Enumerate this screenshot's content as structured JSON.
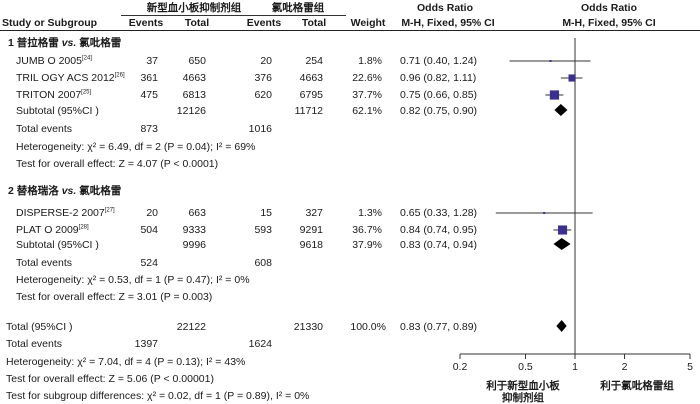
{
  "header": {
    "group_new": "新型血小板抑制剂组",
    "group_clop": "氯吡格雷组",
    "or_header_1": "Odds Ratio",
    "or_header_2": "Odds Ratio",
    "col_study": "Study or Subgroup",
    "col_events_1": "Events",
    "col_total_1": "Total",
    "col_events_2": "Events",
    "col_total_2": "Total",
    "col_weight": "Weight",
    "col_method_1": "M-H, Fixed, 95% CI",
    "col_method_2": "M-H, Fixed, 95% CI"
  },
  "subgroup1": {
    "title_pre": "1 普拉格雷",
    "title_vs": "vs.",
    "title_post": "氯吡格雷",
    "studies": [
      {
        "name": "JUMB O 2005",
        "ref": "[24]",
        "e1": "37",
        "t1": "650",
        "e2": "20",
        "t2": "254",
        "weight": "1.8%",
        "ci": "0.71 (0.40, 1.24)"
      },
      {
        "name": "TRIL OGY ACS 2012",
        "ref": "[26]",
        "e1": "361",
        "t1": "4663",
        "e2": "376",
        "t2": "4663",
        "weight": "22.6%",
        "ci": "0.96 (0.82, 1.11)"
      },
      {
        "name": "TRITON  2007",
        "ref": "[25]",
        "e1": "475",
        "t1": "6813",
        "e2": "620",
        "t2": "6795",
        "weight": "37.7%",
        "ci": "0.75 (0.66, 0.85)"
      }
    ],
    "subtotal_label": "Subtotal (95%CI )",
    "subtotal_t1": "12126",
    "subtotal_t2": "11712",
    "subtotal_weight": "62.1%",
    "subtotal_ci": "0.82 (0.75, 0.90)",
    "total_events_label": "Total events",
    "total_events_1": "873",
    "total_events_2": "1016",
    "heterogeneity": "Heterogeneity: χ² = 6.49, df = 2 (P = 0.04); I² = 69%",
    "overall_effect": "Test for overall effect: Z = 4.07 (P < 0.0001)"
  },
  "subgroup2": {
    "title_pre": "2 替格瑞洛",
    "title_vs": "vs.",
    "title_post": "氯吡格雷",
    "studies": [
      {
        "name": "DISPERSE-2  2007",
        "ref": "[27]",
        "e1": "20",
        "t1": "663",
        "e2": "15",
        "t2": "327",
        "weight": "1.3%",
        "ci": "0.65 (0.33, 1.28)"
      },
      {
        "name": "PLAT O 2009",
        "ref": "[28]",
        "e1": "504",
        "t1": "9333",
        "e2": "593",
        "t2": "9291",
        "weight": "36.7%",
        "ci": "0.84 (0.74, 0.95)"
      }
    ],
    "subtotal_label": "Subtotal (95%CI )",
    "subtotal_t1": "9996",
    "subtotal_t2": "9618",
    "subtotal_weight": "37.9%",
    "subtotal_ci": "0.83 (0.74, 0.94)",
    "total_events_label": "Total events",
    "total_events_1": "524",
    "total_events_2": "608",
    "heterogeneity": "Heterogeneity: χ² = 0.53, df = 1 (P = 0.47); I² = 0%",
    "overall_effect": "Test for overall effect: Z = 3.01 (P = 0.003)"
  },
  "overall": {
    "total_label": "Total (95%CI )",
    "total_t1": "22122",
    "total_t2": "21330",
    "total_weight": "100.0%",
    "total_ci": "0.83 (0.77, 0.89)",
    "total_events_label": "Total events",
    "total_events_1": "1397",
    "total_events_2": "1624",
    "heterogeneity": "Heterogeneity: χ² = 7.04, df = 4 (P = 0.13); I² = 43%",
    "overall_effect": "Test for overall effect: Z = 5.06 (P < 0.00001)",
    "subgroup_diff": "Test for subgroup differences: χ² = 0.02, df = 1 (P = 0.89), I² = 0%"
  },
  "axis": {
    "label_left_1": "利于新型血小板",
    "label_left_2": "抑制剂组",
    "label_right": "利于氯吡格雷组"
  },
  "colors": {
    "marker": "#3b2f8f",
    "line": "#333333"
  },
  "chart_data": {
    "type": "forest",
    "x_scale": "log",
    "xlim": [
      0.2,
      5
    ],
    "x_ticks": [
      0.2,
      0.5,
      1,
      2,
      5
    ],
    "x_tick_labels": [
      "0.2",
      "0.5",
      "1",
      "2",
      "5"
    ],
    "reference_line": 1,
    "studies": [
      {
        "label": "JUMB O 2005",
        "or": 0.71,
        "lo": 0.4,
        "hi": 1.24,
        "weight": 1.8
      },
      {
        "label": "TRIL OGY ACS 2012",
        "or": 0.96,
        "lo": 0.82,
        "hi": 1.11,
        "weight": 22.6
      },
      {
        "label": "TRITON  2007",
        "or": 0.75,
        "lo": 0.66,
        "hi": 0.85,
        "weight": 37.7
      },
      {
        "label": "DISPERSE-2  2007",
        "or": 0.65,
        "lo": 0.33,
        "hi": 1.28,
        "weight": 1.3
      },
      {
        "label": "PLAT O 2009",
        "or": 0.84,
        "lo": 0.74,
        "hi": 0.95,
        "weight": 36.7
      }
    ],
    "summaries": [
      {
        "label": "Subtotal 1",
        "or": 0.82,
        "lo": 0.75,
        "hi": 0.9
      },
      {
        "label": "Subtotal 2",
        "or": 0.83,
        "lo": 0.74,
        "hi": 0.94
      },
      {
        "label": "Total",
        "or": 0.83,
        "lo": 0.77,
        "hi": 0.89
      }
    ]
  }
}
